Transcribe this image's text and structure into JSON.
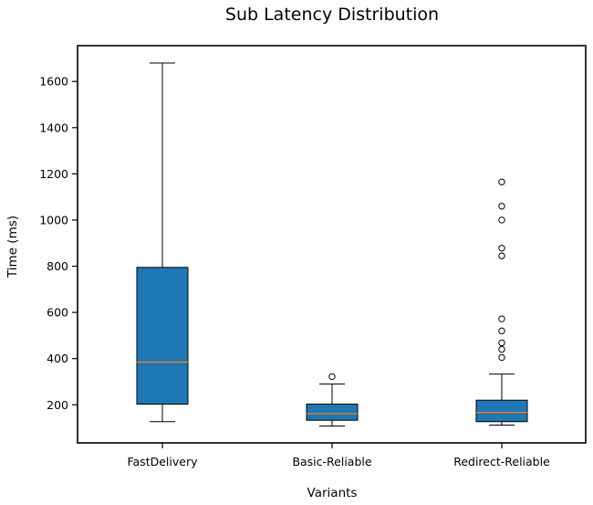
{
  "chart_data": {
    "type": "box",
    "title": "Sub Latency Distribution",
    "xlabel": "Variants",
    "ylabel": "Time (ms)",
    "ylim": [
      35,
      1755
    ],
    "yticks": [
      200,
      400,
      600,
      800,
      1000,
      1200,
      1400,
      1600
    ],
    "grid": false,
    "box_color": "#1f77b4",
    "median_color": "#ff7f0e",
    "categories": [
      "FastDelivery",
      "Basic-Reliable",
      "Redirect-Reliable"
    ],
    "boxes": [
      {
        "category": "FastDelivery",
        "whisker_low": 127,
        "q1": 203,
        "median": 385,
        "q3": 795,
        "whisker_high": 1680,
        "outliers": []
      },
      {
        "category": "Basic-Reliable",
        "whisker_low": 108,
        "q1": 133,
        "median": 162,
        "q3": 203,
        "whisker_high": 290,
        "outliers": [
          322
        ]
      },
      {
        "category": "Redirect-Reliable",
        "whisker_low": 112,
        "q1": 127,
        "median": 167,
        "q3": 220,
        "whisker_high": 333,
        "outliers": [
          405,
          440,
          468,
          520,
          572,
          845,
          878,
          1000,
          1060,
          1165
        ]
      }
    ]
  }
}
